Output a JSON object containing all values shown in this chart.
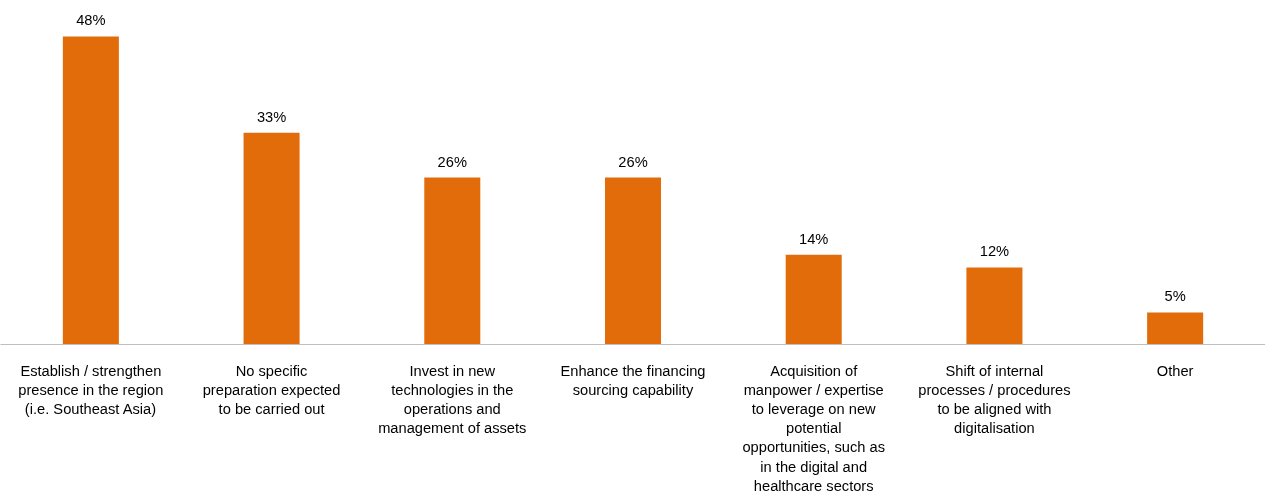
{
  "chart_data": {
    "type": "bar",
    "categories": [
      "Establish / strengthen presence in the region (i.e. Southeast Asia)",
      "No specific preparation expected to be carried out",
      "Invest in new technologies in the operations and management of assets",
      "Enhance the financing sourcing capability",
      "Acquisition of manpower / expertise to leverage on new potential opportunities, such as in the digital and healthcare sectors",
      "Shift of internal processes / procedures to be aligned with digitalisation",
      "Other"
    ],
    "values": [
      48,
      33,
      26,
      26,
      14,
      12,
      5
    ],
    "value_labels": [
      "48%",
      "33%",
      "26%",
      "26%",
      "14%",
      "12%",
      "5%"
    ],
    "color": "#e36c0a",
    "grid": false
  }
}
